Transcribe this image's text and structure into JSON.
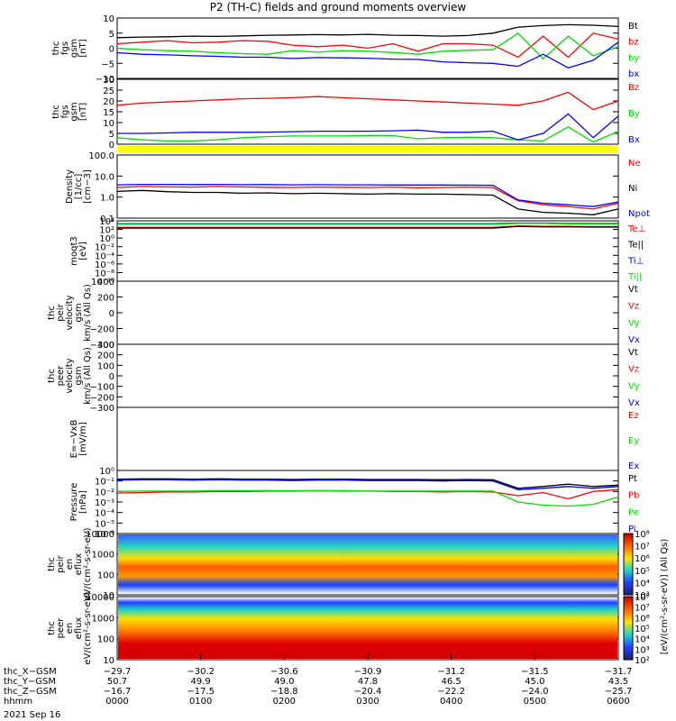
{
  "title": "P2 (TH-C) fields and ground moments overview",
  "date": "2021 Sep 16",
  "colors": {
    "black": "#000000",
    "red": "#ff0000",
    "green": "#00e000",
    "blue": "#0000ff",
    "yellow": "#ffff00"
  },
  "chart_data": [
    {
      "type": "line",
      "id": "fgs_gsm",
      "ylabel": [
        "thc",
        "fgs",
        "gsm",
        "[nT]"
      ],
      "ylim": [
        -10,
        10
      ],
      "yticks": [
        "10",
        "5",
        "0",
        "−5",
        "−10"
      ],
      "series": [
        {
          "name": "Bt",
          "color": "#000000",
          "values": [
            3.5,
            3.7,
            3.8,
            4.0,
            3.9,
            4.1,
            4.3,
            4.4,
            4.5,
            4.4,
            4.6,
            4.3,
            4.2,
            4.0,
            4.2,
            5.0,
            7.0,
            7.5,
            7.8,
            7.6,
            7.2
          ]
        },
        {
          "name": "bz",
          "color": "#ff0000",
          "values": [
            1.5,
            2.0,
            2.5,
            1.8,
            2.0,
            2.5,
            2.3,
            1.0,
            0.5,
            1.0,
            0.0,
            1.5,
            -1.0,
            1.5,
            1.5,
            1.0,
            -3.0,
            4.0,
            -3.0,
            5.0,
            3.0
          ]
        },
        {
          "name": "by",
          "color": "#00e000",
          "values": [
            0.0,
            -0.5,
            -0.8,
            -1.0,
            -1.5,
            -1.8,
            -2.0,
            -0.8,
            -1.3,
            -0.8,
            -1.0,
            -1.4,
            -2.0,
            -1.0,
            -0.7,
            -0.5,
            5.0,
            -3.5,
            4.0,
            -2.5,
            0.5
          ]
        },
        {
          "name": "bx",
          "color": "#0000ff",
          "values": [
            -1.5,
            -2.0,
            -2.2,
            -2.5,
            -2.7,
            -3.0,
            -3.0,
            -3.4,
            -3.1,
            -3.2,
            -3.3,
            -3.6,
            -3.7,
            -4.5,
            -4.8,
            -5.0,
            -6.0,
            -2.0,
            -6.5,
            -4.0,
            2.0
          ]
        }
      ]
    },
    {
      "type": "line",
      "id": "fgs_gsm_big",
      "ylabel": [
        "thc",
        "fgs",
        "gsm",
        "[nT]"
      ],
      "ylim": [
        0,
        30
      ],
      "yticks": [
        "30",
        "25",
        "20",
        "15",
        "10",
        "5",
        "0"
      ],
      "series": [
        {
          "name": "Bz",
          "color": "#ff0000",
          "values": [
            18,
            19,
            19.5,
            20,
            20.5,
            21,
            21.2,
            21.5,
            22,
            21.5,
            21,
            20.5,
            20,
            19.5,
            19,
            18.5,
            18,
            20,
            24,
            16,
            20
          ]
        },
        {
          "name": "By",
          "color": "#00e000",
          "values": [
            3,
            2,
            1.5,
            1.5,
            2,
            3,
            3.5,
            3.8,
            3.8,
            3.8,
            4,
            4,
            2.5,
            3,
            3.2,
            3,
            2,
            1.5,
            8,
            1,
            6
          ]
        },
        {
          "name": "Bx",
          "color": "#0000ff",
          "values": [
            5,
            5,
            5.2,
            5.5,
            5.5,
            5.5,
            5.6,
            5.8,
            6,
            6,
            6,
            6.2,
            6.5,
            5.5,
            5.5,
            6,
            2,
            5,
            14,
            3,
            13
          ]
        }
      ]
    },
    {
      "type": "line",
      "id": "density",
      "ylabel": [
        "Density",
        "[1/cc]",
        "[cm−3]"
      ],
      "log": true,
      "ylim": [
        0.1,
        200
      ],
      "yticks": [
        "100.0",
        "10.0",
        "1.0",
        "0.1"
      ],
      "series": [
        {
          "name": "Ne",
          "color": "#ff0000",
          "values": [
            4,
            4.5,
            4.3,
            4.2,
            4.5,
            4.3,
            4.1,
            4.0,
            4.2,
            4.1,
            4.0,
            4.2,
            3.9,
            4.0,
            4.2,
            4.0,
            0.8,
            0.5,
            0.4,
            0.3,
            0.6
          ]
        },
        {
          "name": "Ni",
          "color": "#000000",
          "values": [
            2.5,
            2.8,
            2.4,
            2.2,
            2.2,
            2.0,
            2.1,
            1.9,
            2.0,
            1.9,
            1.8,
            1.9,
            1.8,
            1.8,
            1.7,
            1.6,
            0.3,
            0.2,
            0.18,
            0.15,
            0.3
          ]
        },
        {
          "name": "Npot",
          "color": "#0000ff",
          "values": [
            5.5,
            5.8,
            5.8,
            5.7,
            5.8,
            5.6,
            5.7,
            5.5,
            5.6,
            5.5,
            5.5,
            5.4,
            5.4,
            5.4,
            5.3,
            5.2,
            0.9,
            0.6,
            0.5,
            0.4,
            0.7
          ]
        }
      ]
    },
    {
      "type": "line",
      "id": "temperature",
      "ylabel": [
        "moqt3",
        "[eV]"
      ],
      "log": true,
      "ylim": [
        1e-10,
        10000
      ],
      "yticks": [
        "10⁴",
        "10²",
        "10⁰",
        "10⁻²",
        "10⁻⁴",
        "10⁻⁶",
        "10⁻⁸",
        "10⁻¹⁰"
      ],
      "series": [
        {
          "name": "Te⊥",
          "color": "#ff0000",
          "values": [
            300,
            300,
            300,
            300,
            300,
            300,
            300,
            300,
            300,
            300,
            300,
            300,
            300,
            300,
            300,
            300,
            600,
            500,
            500,
            400,
            400
          ]
        },
        {
          "name": "Te||",
          "color": "#000000",
          "values": [
            200,
            200,
            200,
            200,
            200,
            200,
            200,
            200,
            200,
            200,
            200,
            200,
            200,
            200,
            200,
            200,
            500,
            400,
            400,
            350,
            350
          ]
        },
        {
          "name": "Ti⊥",
          "color": "#0000ff",
          "values": [
            2000,
            2000,
            2000,
            2000,
            2000,
            2000,
            2000,
            2000,
            2000,
            2000,
            2000,
            2000,
            2000,
            2000,
            2000,
            2000,
            3000,
            3000,
            2500,
            2500,
            2500
          ]
        },
        {
          "name": "Ti||",
          "color": "#00e000",
          "values": [
            1500,
            1500,
            1500,
            1500,
            1500,
            1500,
            1500,
            1500,
            1500,
            1500,
            1500,
            1500,
            1500,
            1500,
            1500,
            1500,
            2500,
            2500,
            2000,
            2000,
            2000
          ]
        }
      ]
    },
    {
      "type": "line",
      "id": "peir_velocity",
      "ylabel": [
        "thc",
        "peir",
        "velocity",
        "gsm",
        "km/s (All Qs)"
      ],
      "ylim": [
        -400,
        400
      ],
      "yticks": [
        "400",
        "200",
        "0",
        "−200",
        "−400"
      ],
      "legend": [
        "Vt",
        "Vz",
        "Vy",
        "Vx"
      ],
      "legend_colors": [
        "#000000",
        "#ff0000",
        "#00e000",
        "#0000ff"
      ]
    },
    {
      "type": "line",
      "id": "peer_velocity",
      "ylabel": [
        "thc",
        "peer",
        "velocity",
        "gsm",
        "km/s (All Qs)"
      ],
      "ylim": [
        -300,
        300
      ],
      "yticks": [
        "300",
        "200",
        "100",
        "0",
        "−100",
        "−200",
        "−300"
      ],
      "legend": [
        "Vt",
        "Vz",
        "Vy",
        "Vx"
      ],
      "legend_colors": [
        "#000000",
        "#ff0000",
        "#00e000",
        "#0000ff"
      ]
    },
    {
      "type": "line",
      "id": "efield",
      "ylabel": [
        "E=−VxB",
        "[mV/m]"
      ],
      "legend": [
        "Ez",
        "Ey",
        "Ex"
      ],
      "legend_colors": [
        "#ff0000",
        "#00e000",
        "#0000ff"
      ]
    },
    {
      "type": "line",
      "id": "pressure",
      "ylabel": [
        "Pressure",
        "[nPa]"
      ],
      "log": true,
      "ylim": [
        1e-06,
        1
      ],
      "yticks": [
        "10⁰",
        "10⁻¹",
        "10⁻²",
        "10⁻³",
        "10⁻⁴",
        "10⁻⁵",
        "10⁻⁶"
      ],
      "series": [
        {
          "name": "Pt",
          "color": "#000000",
          "values": [
            0.15,
            0.16,
            0.16,
            0.15,
            0.16,
            0.15,
            0.15,
            0.14,
            0.15,
            0.15,
            0.14,
            0.14,
            0.14,
            0.13,
            0.14,
            0.13,
            0.02,
            0.03,
            0.05,
            0.03,
            0.04
          ]
        },
        {
          "name": "Pb",
          "color": "#ff0000",
          "values": [
            0.007,
            0.008,
            0.009,
            0.009,
            0.01,
            0.01,
            0.011,
            0.011,
            0.012,
            0.011,
            0.011,
            0.01,
            0.01,
            0.009,
            0.01,
            0.009,
            0.004,
            0.008,
            0.002,
            0.01,
            0.015
          ]
        },
        {
          "name": "Pe",
          "color": "#00e000",
          "values": [
            0.01,
            0.011,
            0.011,
            0.011,
            0.012,
            0.012,
            0.012,
            0.012,
            0.012,
            0.012,
            0.011,
            0.011,
            0.011,
            0.011,
            0.011,
            0.011,
            0.001,
            0.0005,
            0.0004,
            0.0006,
            0.003
          ]
        },
        {
          "name": "Pi",
          "color": "#0000ff",
          "values": [
            0.12,
            0.13,
            0.13,
            0.12,
            0.13,
            0.12,
            0.12,
            0.11,
            0.12,
            0.12,
            0.11,
            0.11,
            0.11,
            0.1,
            0.11,
            0.1,
            0.015,
            0.02,
            0.03,
            0.02,
            0.03
          ]
        }
      ]
    },
    {
      "type": "heatmap",
      "id": "peir_en_eflux",
      "ylabel": [
        "thc",
        "peir",
        "en",
        "eflux",
        "eV/(cm²-s-sr-eV)"
      ],
      "log": true,
      "ylim": [
        10,
        20000
      ],
      "yticks": [
        "10000",
        "1000",
        "100",
        "10"
      ]
    },
    {
      "type": "heatmap",
      "id": "peer_en_eflux",
      "ylabel": [
        "thc",
        "peer",
        "en",
        "eflux",
        "eV/(cm²-s-sr-eV)"
      ],
      "log": true,
      "ylim": [
        5,
        20000
      ],
      "yticks": [
        "10000",
        "1000",
        "100",
        "10"
      ]
    }
  ],
  "colorbar": {
    "label": "[eV/(cm²-s-sr-eV)] (All Qs)",
    "ticks": [
      "10⁸",
      "10⁷",
      "10⁶",
      "10⁵",
      "10⁴",
      "10³"
    ]
  },
  "colorbar2": {
    "label": "[eV/(cm²-s-sr-eV)] (All Qs)",
    "ticks": [
      "10⁸",
      "10⁷",
      "10⁶",
      "10⁵",
      "10⁴",
      "10³",
      "10²"
    ]
  },
  "xaxis": {
    "row_labels": [
      "thc_X−GSM",
      "thc_Y−GSM",
      "thc_Z−GSM",
      "hhmm"
    ],
    "columns": [
      [
        "−29.7",
        "50.7",
        "−16.7",
        "0000"
      ],
      [
        "−30.2",
        "49.9",
        "−17.5",
        "0100"
      ],
      [
        "−30.6",
        "49.0",
        "−18.8",
        "0200"
      ],
      [
        "−30.9",
        "47.8",
        "−20.4",
        "0300"
      ],
      [
        "−31.2",
        "46.5",
        "−22.2",
        "0400"
      ],
      [
        "−31.5",
        "45.0",
        "−24.0",
        "0500"
      ],
      [
        "−31.7",
        "43.5",
        "−25.7",
        "0600"
      ]
    ]
  }
}
